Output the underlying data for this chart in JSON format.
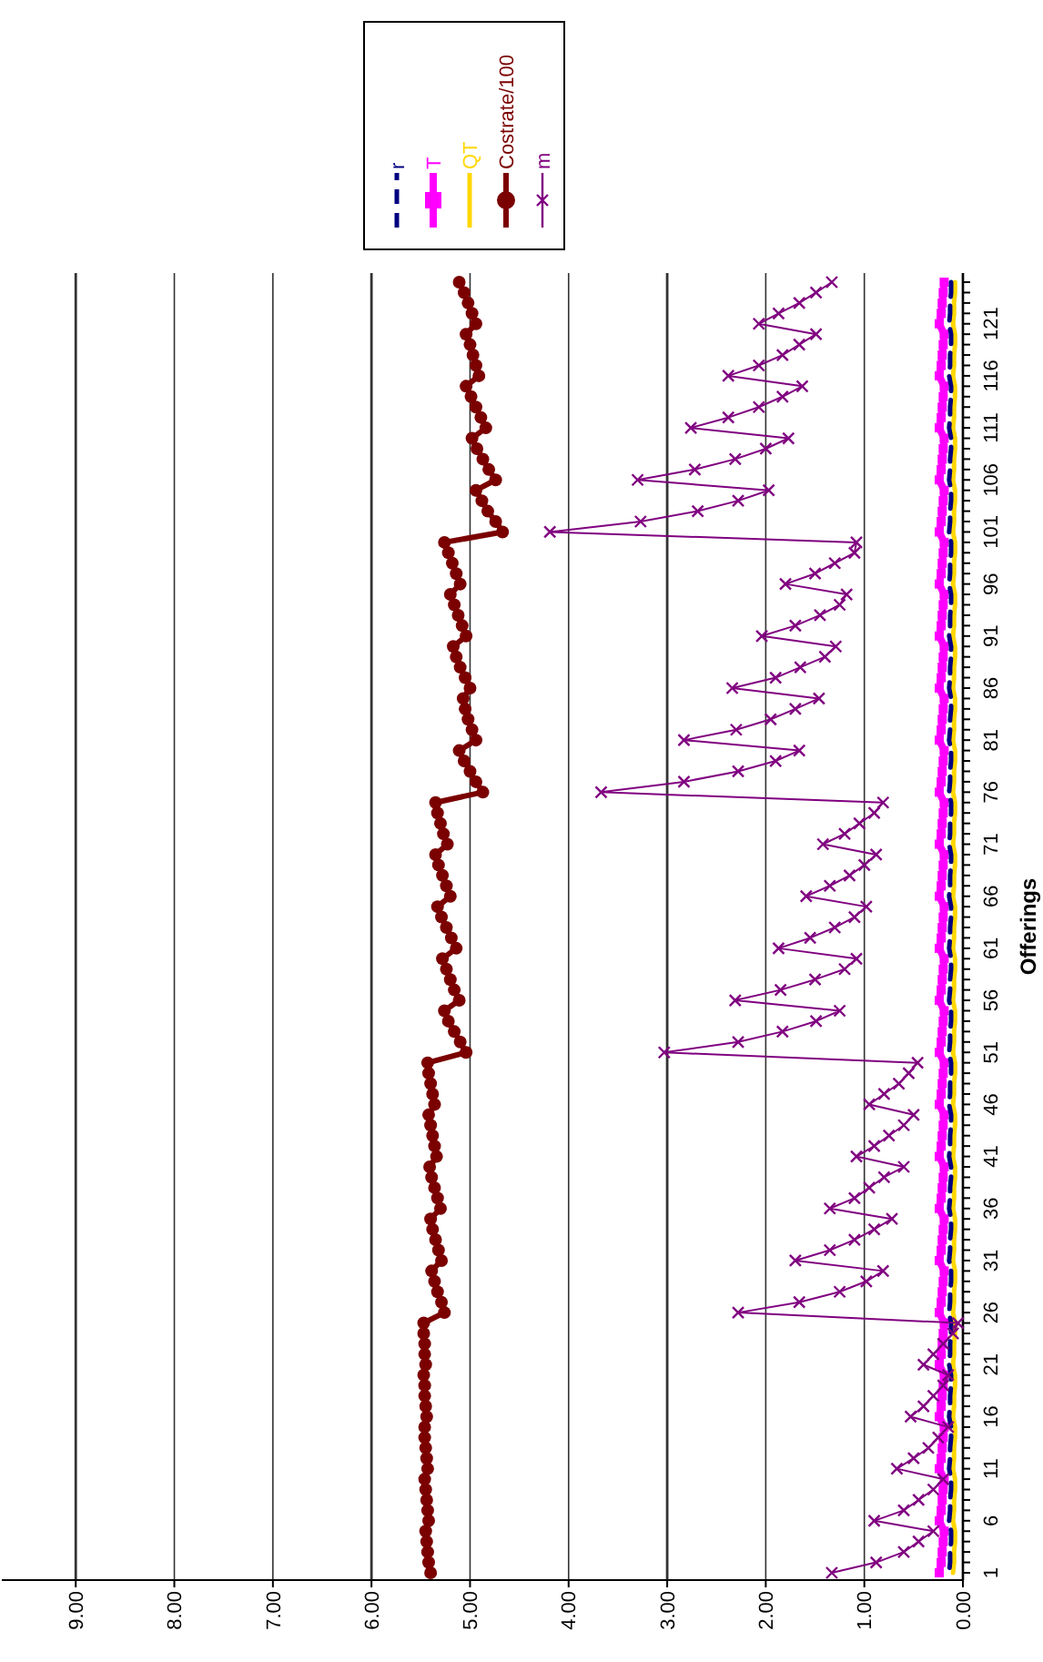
{
  "chart_data": {
    "type": "line",
    "orientation": "horizontal",
    "ylabel": "Offerings",
    "categories": [
      null,
      null,
      null,
      null,
      "121",
      null,
      null,
      null,
      null,
      "116",
      null,
      null,
      null,
      null,
      "111",
      null,
      null,
      null,
      null,
      "106",
      null,
      null,
      null,
      null,
      "101",
      null,
      null,
      null,
      null,
      "96",
      null,
      null,
      null,
      null,
      "91",
      null,
      null,
      null,
      null,
      "86",
      null,
      null,
      null,
      null,
      "81",
      null,
      null,
      null,
      null,
      "76",
      null,
      null,
      null,
      null,
      "71",
      null,
      null,
      null,
      null,
      "66",
      null,
      null,
      null,
      null,
      "61",
      null,
      null,
      null,
      null,
      "56",
      null,
      null,
      null,
      null,
      "51",
      null,
      null,
      null,
      null,
      "46",
      null,
      null,
      null,
      null,
      "41",
      null,
      null,
      null,
      null,
      "36",
      null,
      null,
      null,
      null,
      "31",
      null,
      null,
      null,
      null,
      "26",
      null,
      null,
      null,
      null,
      "21",
      null,
      null,
      null,
      null,
      "16",
      null,
      null,
      null,
      null,
      "11",
      null,
      null,
      null,
      null,
      "6",
      null,
      null,
      null,
      null,
      "1"
    ],
    "xlim": [
      9.75,
      0
    ],
    "xticks": [
      {
        "value": 9,
        "label": "9.00"
      },
      {
        "value": 8,
        "label": "8.00"
      },
      {
        "value": 7,
        "label": "7.00"
      },
      {
        "value": 6,
        "label": "6.00"
      },
      {
        "value": 5,
        "label": "5.00"
      },
      {
        "value": 4,
        "label": "4.00"
      },
      {
        "value": 3,
        "label": "3.00"
      },
      {
        "value": 2,
        "label": "2.00"
      },
      {
        "value": 1,
        "label": "1.00"
      },
      {
        "value": 0,
        "label": "0.00"
      }
    ],
    "grid": "x",
    "legend": "top right",
    "series": [
      {
        "name": "r",
        "color": "#000080",
        "marker": "none",
        "line_style": "dashed",
        "values": [
          0.12,
          0.12,
          0.13,
          0.13,
          0.14,
          0.12,
          0.12,
          0.13,
          0.13,
          0.14,
          0.12,
          0.12,
          0.13,
          0.13,
          0.14,
          0.12,
          0.12,
          0.13,
          0.13,
          0.14,
          0.12,
          0.12,
          0.13,
          0.13,
          0.14,
          0.12,
          0.12,
          0.13,
          0.13,
          0.14,
          0.12,
          0.12,
          0.13,
          0.13,
          0.14,
          0.12,
          0.12,
          0.13,
          0.13,
          0.14,
          0.12,
          0.12,
          0.13,
          0.13,
          0.14,
          0.12,
          0.12,
          0.13,
          0.13,
          0.14,
          0.12,
          0.12,
          0.13,
          0.13,
          0.14,
          0.12,
          0.12,
          0.13,
          0.13,
          0.14,
          0.12,
          0.12,
          0.13,
          0.13,
          0.14,
          0.12,
          0.12,
          0.13,
          0.13,
          0.14,
          0.12,
          0.12,
          0.13,
          0.13,
          0.14,
          0.12,
          0.12,
          0.13,
          0.13,
          0.14,
          0.12,
          0.12,
          0.13,
          0.13,
          0.14,
          0.12,
          0.12,
          0.13,
          0.13,
          0.14,
          0.12,
          0.12,
          0.13,
          0.13,
          0.14,
          0.12,
          0.12,
          0.13,
          0.13,
          0.14,
          0.12,
          0.12,
          0.13,
          0.13,
          0.14,
          0.12,
          0.12,
          0.13,
          0.13,
          0.14,
          0.12,
          0.12,
          0.13,
          0.13,
          0.14,
          0.12,
          0.12,
          0.13,
          0.13,
          0.14,
          0.12,
          0.12,
          0.13,
          0.13,
          0.14
        ]
      },
      {
        "name": "T",
        "color": "#ff00ff",
        "marker": "square",
        "line_style": "solid",
        "values": [
          0.19,
          0.2,
          0.21,
          0.22,
          0.24,
          0.19,
          0.2,
          0.21,
          0.22,
          0.24,
          0.19,
          0.2,
          0.21,
          0.22,
          0.24,
          0.19,
          0.2,
          0.21,
          0.22,
          0.24,
          0.19,
          0.2,
          0.21,
          0.22,
          0.24,
          0.19,
          0.2,
          0.21,
          0.22,
          0.24,
          0.19,
          0.2,
          0.21,
          0.22,
          0.24,
          0.19,
          0.2,
          0.21,
          0.22,
          0.24,
          0.19,
          0.2,
          0.21,
          0.22,
          0.24,
          0.19,
          0.2,
          0.21,
          0.22,
          0.24,
          0.19,
          0.2,
          0.21,
          0.22,
          0.24,
          0.19,
          0.2,
          0.21,
          0.22,
          0.24,
          0.19,
          0.2,
          0.21,
          0.22,
          0.24,
          0.19,
          0.2,
          0.21,
          0.22,
          0.24,
          0.19,
          0.2,
          0.21,
          0.22,
          0.24,
          0.19,
          0.2,
          0.21,
          0.22,
          0.24,
          0.19,
          0.2,
          0.21,
          0.22,
          0.24,
          0.19,
          0.2,
          0.21,
          0.22,
          0.24,
          0.19,
          0.2,
          0.21,
          0.22,
          0.24,
          0.19,
          0.2,
          0.21,
          0.22,
          0.24,
          0.19,
          0.2,
          0.21,
          0.22,
          0.24,
          0.19,
          0.2,
          0.21,
          0.22,
          0.24,
          0.19,
          0.2,
          0.21,
          0.22,
          0.24,
          0.19,
          0.2,
          0.21,
          0.22,
          0.24,
          0.19,
          0.2,
          0.21,
          0.22,
          0.24
        ]
      },
      {
        "name": "QT",
        "color": "#ffd700",
        "marker": "none",
        "line_style": "solid",
        "values": [
          0.08,
          0.08,
          0.09,
          0.09,
          0.1,
          0.08,
          0.08,
          0.09,
          0.09,
          0.1,
          0.08,
          0.08,
          0.09,
          0.09,
          0.1,
          0.08,
          0.08,
          0.09,
          0.09,
          0.1,
          0.08,
          0.08,
          0.09,
          0.09,
          0.1,
          0.08,
          0.08,
          0.09,
          0.09,
          0.1,
          0.08,
          0.08,
          0.09,
          0.09,
          0.1,
          0.08,
          0.08,
          0.09,
          0.09,
          0.1,
          0.08,
          0.08,
          0.09,
          0.09,
          0.1,
          0.08,
          0.08,
          0.09,
          0.09,
          0.1,
          0.08,
          0.08,
          0.09,
          0.09,
          0.1,
          0.08,
          0.08,
          0.09,
          0.09,
          0.1,
          0.08,
          0.08,
          0.09,
          0.09,
          0.1,
          0.08,
          0.08,
          0.09,
          0.09,
          0.1,
          0.08,
          0.08,
          0.09,
          0.09,
          0.1,
          0.08,
          0.08,
          0.09,
          0.09,
          0.1,
          0.08,
          0.08,
          0.09,
          0.09,
          0.1,
          0.08,
          0.08,
          0.09,
          0.09,
          0.1,
          0.08,
          0.08,
          0.09,
          0.09,
          0.1,
          0.08,
          0.08,
          0.09,
          0.09,
          0.1,
          0.08,
          0.08,
          0.09,
          0.09,
          0.1,
          0.08,
          0.08,
          0.09,
          0.09,
          0.1,
          0.08,
          0.08,
          0.09,
          0.09,
          0.1,
          0.08,
          0.08,
          0.09,
          0.09,
          0.1,
          0.08,
          0.08,
          0.09,
          0.09,
          0.1
        ]
      },
      {
        "name": "Costrate/100",
        "color": "#7b0000",
        "marker": "circle",
        "line_style": "solid",
        "values": [
          5.11,
          5.06,
          5.02,
          4.98,
          4.94,
          5.04,
          5.0,
          4.97,
          4.94,
          4.91,
          5.04,
          4.99,
          4.94,
          4.89,
          4.84,
          4.98,
          4.93,
          4.87,
          4.81,
          4.74,
          4.94,
          4.88,
          4.82,
          4.74,
          4.67,
          5.26,
          5.22,
          5.18,
          5.14,
          5.1,
          5.2,
          5.16,
          5.12,
          5.08,
          5.04,
          5.17,
          5.14,
          5.1,
          5.05,
          5.0,
          5.07,
          5.05,
          5.02,
          4.98,
          4.94,
          5.11,
          5.06,
          5.0,
          4.94,
          4.87,
          5.35,
          5.33,
          5.3,
          5.27,
          5.23,
          5.35,
          5.32,
          5.28,
          5.24,
          5.2,
          5.33,
          5.29,
          5.24,
          5.19,
          5.14,
          5.28,
          5.24,
          5.2,
          5.16,
          5.11,
          5.26,
          5.22,
          5.16,
          5.1,
          5.04,
          5.43,
          5.42,
          5.4,
          5.38,
          5.36,
          5.42,
          5.4,
          5.38,
          5.36,
          5.34,
          5.41,
          5.39,
          5.36,
          5.33,
          5.3,
          5.4,
          5.38,
          5.35,
          5.32,
          5.29,
          5.39,
          5.36,
          5.33,
          5.29,
          5.26,
          5.47,
          5.47,
          5.46,
          5.46,
          5.45,
          5.47,
          5.46,
          5.46,
          5.45,
          5.44,
          5.46,
          5.46,
          5.45,
          5.44,
          5.43,
          5.46,
          5.45,
          5.44,
          5.43,
          5.42,
          5.45,
          5.44,
          5.43,
          5.42,
          5.4
        ]
      },
      {
        "name": "m",
        "color": "#800080",
        "marker": "cross",
        "line_style": "solid",
        "values": [
          1.33,
          1.49,
          1.66,
          1.87,
          2.07,
          1.49,
          1.66,
          1.83,
          2.07,
          2.38,
          1.63,
          1.83,
          2.07,
          2.38,
          2.76,
          1.77,
          2.0,
          2.31,
          2.72,
          3.3,
          1.97,
          2.28,
          2.69,
          3.27,
          4.19,
          1.08,
          1.1,
          1.3,
          1.5,
          1.8,
          1.18,
          1.25,
          1.45,
          1.7,
          2.04,
          1.29,
          1.4,
          1.65,
          1.9,
          2.34,
          1.46,
          1.7,
          1.95,
          2.3,
          2.83,
          1.66,
          1.9,
          2.28,
          2.83,
          3.67,
          0.81,
          0.9,
          1.05,
          1.2,
          1.42,
          0.88,
          1.0,
          1.15,
          1.35,
          1.59,
          0.98,
          1.1,
          1.3,
          1.55,
          1.87,
          1.08,
          1.2,
          1.5,
          1.85,
          2.31,
          1.25,
          1.49,
          1.83,
          2.28,
          3.03,
          0.46,
          0.55,
          0.65,
          0.8,
          0.95,
          0.5,
          0.6,
          0.75,
          0.9,
          1.08,
          0.6,
          0.8,
          0.95,
          1.1,
          1.35,
          0.72,
          0.9,
          1.1,
          1.35,
          1.7,
          0.81,
          0.98,
          1.25,
          1.66,
          2.28,
          0.05,
          0.1,
          0.2,
          0.3,
          0.4,
          0.15,
          0.2,
          0.3,
          0.4,
          0.53,
          0.15,
          0.25,
          0.35,
          0.5,
          0.67,
          0.2,
          0.3,
          0.45,
          0.6,
          0.9,
          0.3,
          0.45,
          0.6,
          0.88,
          1.33
        ]
      }
    ]
  }
}
